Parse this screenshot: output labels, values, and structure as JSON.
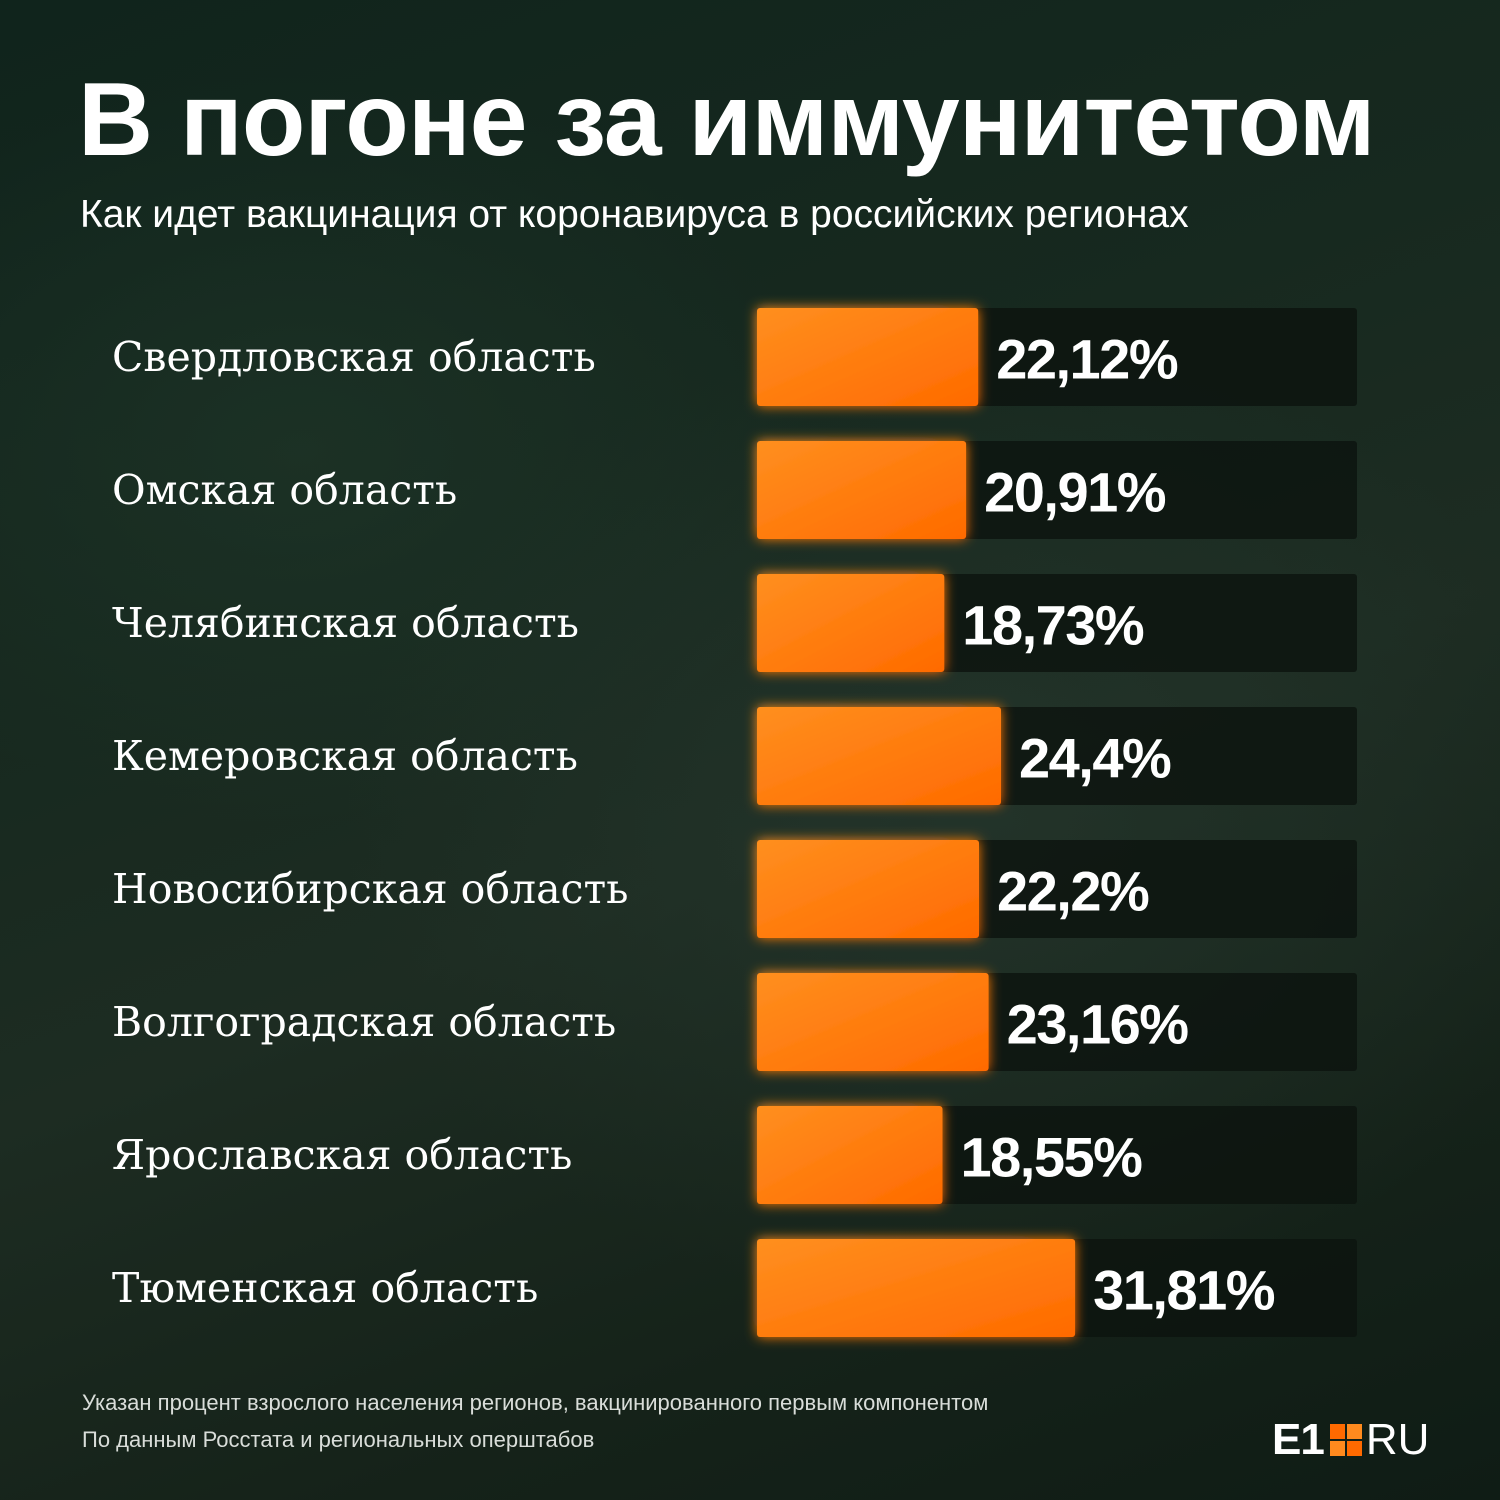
{
  "title": "В погоне за иммунитетом",
  "subtitle": "Как идет вакцинация от коронавируса в российских регионах",
  "footnote": "Указан процент взрослого населения регионов, вакцинированного первым компонентом",
  "source": "По данным Росстата и региональных оперштабов",
  "logo": {
    "e1": "E1",
    "ru": "RU",
    "square-icon": "logo-square-icon"
  },
  "colors": {
    "bar": "#ff7a0a",
    "bar_bright": "#ff8f1f",
    "track": "#0c140f",
    "text": "#ffffff"
  },
  "chart_data": {
    "type": "bar",
    "orientation": "horizontal",
    "categories": [
      "Свердловская область",
      "Омская область",
      "Челябинская область",
      "Кемеровская область",
      "Новосибирская область",
      "Волгоградская область",
      "Ярославская область",
      "Тюменская область"
    ],
    "values": [
      22.12,
      20.91,
      18.73,
      24.4,
      22.2,
      23.16,
      18.55,
      31.81
    ],
    "value_labels": [
      "22,12%",
      "20,91%",
      "18,73%",
      "24,4%",
      "22,2%",
      "23,16%",
      "18,55%",
      "31,81%"
    ],
    "unit": "%",
    "xlim": [
      0,
      60
    ],
    "grid": false,
    "legend": "none"
  }
}
